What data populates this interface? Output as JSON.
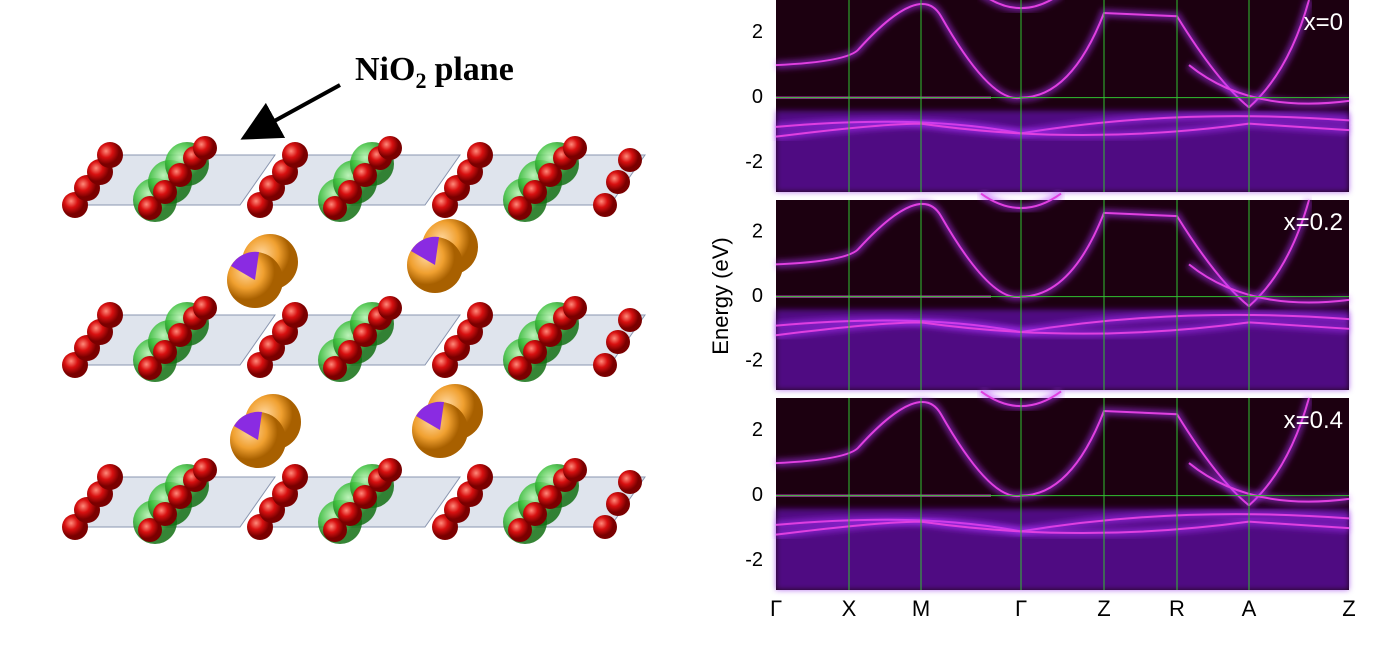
{
  "structure": {
    "label": [
      "NiO",
      "2",
      "plane"
    ]
  },
  "bands": {
    "ylabel": "Energy (eV)",
    "ylim": [
      -2.9,
      3.0
    ],
    "yticks": [
      2,
      0,
      -2
    ],
    "panels": [
      {
        "label": "x=0"
      },
      {
        "label": "x=0.2"
      },
      {
        "label": "x=0.4"
      }
    ],
    "kpath": [
      "Γ",
      "X",
      "M",
      "Γ",
      "Z",
      "R",
      "A",
      "Z"
    ]
  }
}
